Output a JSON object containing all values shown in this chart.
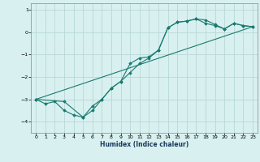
{
  "xlabel": "Humidex (Indice chaleur)",
  "bg_color": "#d8f0f0",
  "grid_color": "#b8d8d8",
  "line_color": "#1a7a6e",
  "xlim": [
    -0.5,
    23.5
  ],
  "ylim": [
    -4.5,
    1.3
  ],
  "yticks": [
    -4,
    -3,
    -2,
    -1,
    0,
    1
  ],
  "xticks": [
    0,
    1,
    2,
    3,
    4,
    5,
    6,
    7,
    8,
    9,
    10,
    11,
    12,
    13,
    14,
    15,
    16,
    17,
    18,
    19,
    20,
    21,
    22,
    23
  ],
  "series1_x": [
    0,
    1,
    2,
    3,
    4,
    5,
    6,
    7,
    8,
    9,
    10,
    11,
    12,
    13,
    14,
    15,
    16,
    17,
    18,
    19,
    20,
    21,
    22,
    23
  ],
  "series1_y": [
    -3.0,
    -3.2,
    -3.1,
    -3.5,
    -3.7,
    -3.8,
    -3.3,
    -3.0,
    -2.5,
    -2.2,
    -1.8,
    -1.4,
    -1.15,
    -0.8,
    0.2,
    0.45,
    0.5,
    0.6,
    0.55,
    0.35,
    0.15,
    0.4,
    0.3,
    0.25
  ],
  "series2_x": [
    0,
    3,
    5,
    6,
    7,
    8,
    9,
    10,
    11,
    12,
    13,
    14,
    15,
    16,
    17,
    18,
    19,
    20,
    21,
    22,
    23
  ],
  "series2_y": [
    -3.0,
    -3.1,
    -3.8,
    -3.5,
    -3.0,
    -2.5,
    -2.2,
    -1.4,
    -1.15,
    -1.1,
    -0.8,
    0.2,
    0.45,
    0.5,
    0.6,
    0.4,
    0.3,
    0.15,
    0.4,
    0.3,
    0.25
  ],
  "series3_x": [
    0,
    23
  ],
  "series3_y": [
    -3.0,
    0.25
  ]
}
